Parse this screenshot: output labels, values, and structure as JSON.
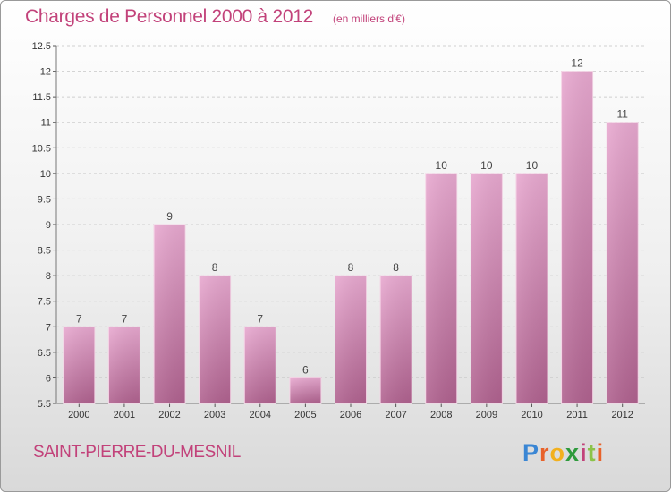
{
  "title": "Charges de Personnel 2000 à 2012",
  "subtitle": "(en milliers d'€)",
  "commune": "SAINT-PIERRE-DU-MESNIL",
  "logo": {
    "letters": [
      "P",
      "r",
      "o",
      "x",
      "i",
      "t",
      "i"
    ],
    "colors": [
      "#3a86d4",
      "#e8622a",
      "#f2b01e",
      "#2e9a3c",
      "#c2427a",
      "#8bc34a",
      "#e8622a"
    ]
  },
  "colors": {
    "title": "#c2427a",
    "bar_light": "#e8a9d0",
    "bar_dark": "#b0628f",
    "grid": "#cfcfcf"
  },
  "chart_data": {
    "type": "bar",
    "title": "Charges de Personnel 2000 à 2012",
    "subtitle": "(en milliers d'€)",
    "categories": [
      "2000",
      "2001",
      "2002",
      "2003",
      "2004",
      "2005",
      "2006",
      "2007",
      "2008",
      "2009",
      "2010",
      "2011",
      "2012"
    ],
    "values": [
      7,
      7,
      9,
      8,
      7,
      6,
      8,
      8,
      10,
      10,
      10,
      12,
      11
    ],
    "data_labels": [
      "7",
      "7",
      "9",
      "8",
      "7",
      "6",
      "8",
      "8",
      "10",
      "10",
      "10",
      "12",
      "11"
    ],
    "ylim": [
      5.5,
      12.5
    ],
    "yticks": [
      5.5,
      6,
      6.5,
      7,
      7.5,
      8,
      8.5,
      9,
      9.5,
      10,
      10.5,
      11,
      11.5,
      12,
      12.5
    ],
    "ytick_labels": [
      "5.5",
      "6",
      "6.5",
      "7",
      "7.5",
      "8",
      "8.5",
      "9",
      "9.5",
      "10",
      "10.5",
      "11",
      "11.5",
      "12",
      "12.5"
    ],
    "grid": true,
    "legend": "none"
  }
}
